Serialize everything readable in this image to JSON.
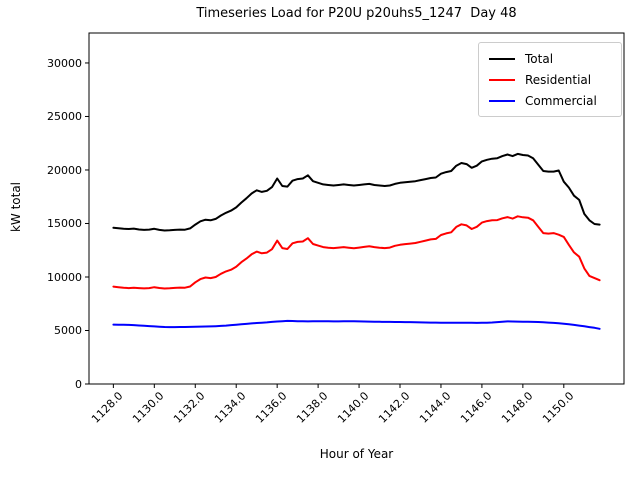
{
  "figure": {
    "background": "#ffffff",
    "text_color": "#000000",
    "legend_border_color": "#cccccc"
  },
  "chart_data": {
    "type": "line",
    "title": "Timeseries Load for P20U p20uhs5_1247  Day 48",
    "xlabel": "Hour of Year",
    "ylabel": "kW total",
    "grid": false,
    "legend_position": "upper right",
    "xlim": [
      1126.81,
      1152.94
    ],
    "ylim": [
      0,
      32800
    ],
    "xticks": [
      1128,
      1130,
      1132,
      1134,
      1136,
      1138,
      1140,
      1142,
      1144,
      1146,
      1148,
      1150
    ],
    "xtick_labels": [
      "1128.0",
      "1130.0",
      "1132.0",
      "1134.0",
      "1136.0",
      "1138.0",
      "1140.0",
      "1142.0",
      "1144.0",
      "1146.0",
      "1148.0",
      "1150.0"
    ],
    "yticks": [
      0,
      5000,
      10000,
      15000,
      20000,
      25000,
      30000
    ],
    "ytick_labels": [
      "0",
      "5000",
      "10000",
      "15000",
      "20000",
      "25000",
      "30000"
    ],
    "x_start": 1128.0,
    "x_step": 0.25,
    "x_end": 1151.75,
    "series": [
      {
        "name": "Total",
        "color": "#000000",
        "values": [
          14600,
          14550,
          14500,
          14480,
          14520,
          14440,
          14400,
          14430,
          14500,
          14400,
          14340,
          14360,
          14400,
          14430,
          14420,
          14540,
          14900,
          15200,
          15350,
          15300,
          15430,
          15750,
          16000,
          16200,
          16500,
          16950,
          17350,
          17800,
          18100,
          17950,
          18050,
          18400,
          19200,
          18500,
          18450,
          19000,
          19150,
          19200,
          19500,
          18950,
          18800,
          18650,
          18600,
          18550,
          18600,
          18650,
          18600,
          18550,
          18600,
          18650,
          18700,
          18600,
          18550,
          18500,
          18550,
          18700,
          18800,
          18850,
          18900,
          18950,
          19050,
          19150,
          19250,
          19300,
          19650,
          19800,
          19900,
          20400,
          20650,
          20550,
          20200,
          20400,
          20800,
          20950,
          21050,
          21100,
          21300,
          21450,
          21300,
          21500,
          21400,
          21350,
          21100,
          20500,
          19900,
          19850,
          19850,
          19950,
          18900,
          18350,
          17600,
          17200,
          15900,
          15300,
          14950,
          14900
        ]
      },
      {
        "name": "Residential",
        "color": "#ff0000",
        "values": [
          9100,
          9050,
          8990,
          8960,
          9000,
          8960,
          8930,
          8960,
          9050,
          8970,
          8920,
          8940,
          8980,
          9010,
          9000,
          9110,
          9500,
          9800,
          9950,
          9900,
          10000,
          10300,
          10520,
          10680,
          10950,
          11380,
          11720,
          12120,
          12370,
          12210,
          12280,
          12600,
          13400,
          12700,
          12620,
          13150,
          13280,
          13320,
          13620,
          13080,
          12930,
          12790,
          12740,
          12700,
          12750,
          12790,
          12740,
          12690,
          12750,
          12810,
          12870,
          12790,
          12740,
          12700,
          12750,
          12910,
          13010,
          13070,
          13120,
          13180,
          13290,
          13400,
          13510,
          13560,
          13920,
          14070,
          14180,
          14680,
          14920,
          14820,
          14480,
          14690,
          15080,
          15220,
          15300,
          15320,
          15480,
          15600,
          15460,
          15670,
          15580,
          15540,
          15300,
          14700,
          14100,
          14050,
          14100,
          13950,
          13750,
          13000,
          12300,
          11900,
          10800,
          10100,
          9900,
          9700
        ]
      },
      {
        "name": "Commercial",
        "color": "#0000ff",
        "values": [
          5550,
          5540,
          5530,
          5520,
          5500,
          5470,
          5440,
          5410,
          5380,
          5350,
          5330,
          5320,
          5320,
          5330,
          5330,
          5340,
          5350,
          5360,
          5370,
          5380,
          5400,
          5430,
          5460,
          5500,
          5540,
          5580,
          5620,
          5660,
          5700,
          5730,
          5760,
          5800,
          5840,
          5870,
          5900,
          5890,
          5870,
          5860,
          5850,
          5860,
          5870,
          5870,
          5860,
          5850,
          5850,
          5860,
          5870,
          5860,
          5850,
          5840,
          5830,
          5820,
          5810,
          5800,
          5800,
          5790,
          5790,
          5780,
          5780,
          5770,
          5760,
          5750,
          5740,
          5740,
          5730,
          5730,
          5720,
          5720,
          5730,
          5730,
          5720,
          5710,
          5720,
          5730,
          5750,
          5780,
          5820,
          5850,
          5840,
          5830,
          5820,
          5810,
          5800,
          5790,
          5770,
          5740,
          5710,
          5670,
          5630,
          5580,
          5520,
          5460,
          5390,
          5320,
          5250,
          5160
        ]
      }
    ]
  }
}
